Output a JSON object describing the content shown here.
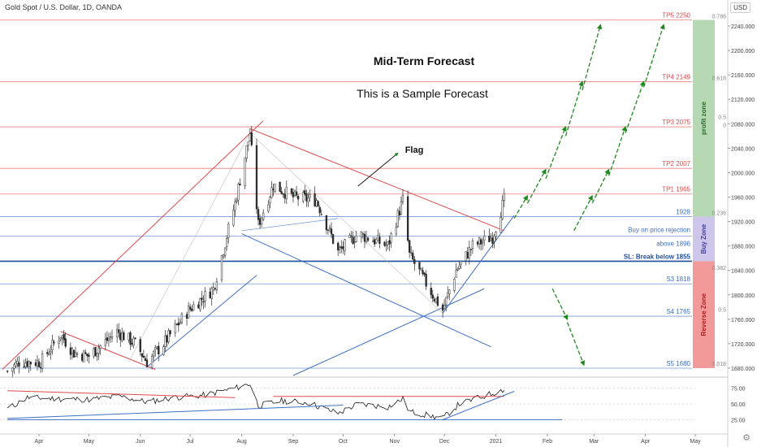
{
  "header": {
    "symbol_title": "Gold Spot / U.S. Dollar, 1D, OANDA",
    "currency": "USD"
  },
  "chart_data": {
    "type": "candlestick",
    "title": "Mid-Term Forecast",
    "subtitle": "This is a Sample Forecast",
    "y_axis": {
      "ylim": [
        1668,
        2256
      ],
      "ticks": [
        1680,
        1720,
        1760,
        1800,
        1840,
        1880,
        1920,
        1960,
        2000,
        2040,
        2080,
        2120,
        2160,
        2200,
        2240
      ],
      "tick_labels": [
        "1680.000",
        "1720.000",
        "1760.000",
        "1800.000",
        "1840.000",
        "1880.000",
        "1920.000",
        "1960.000",
        "2000.000",
        "2040.000",
        "2080.000",
        "2120.000",
        "2160.000",
        "2200.000",
        "2240.000"
      ]
    },
    "x_axis": {
      "ticks": [
        "2020-04-01",
        "2020-05-01",
        "2020-06-01",
        "2020-07-01",
        "2020-08-01",
        "2020-09-01",
        "2020-10-01",
        "2020-11-01",
        "2020-12-01",
        "2021-01-01",
        "2021-02-01",
        "2021-03-01",
        "2021-04-01",
        "2021-05-01"
      ],
      "tick_labels": [
        "Apr",
        "May",
        "Jun",
        "Jul",
        "Aug",
        "Sep",
        "Oct",
        "Nov",
        "Dec",
        "2021",
        "Feb",
        "Mar",
        "Apr",
        "May"
      ]
    },
    "price_path": [
      [
        "2020-03-13",
        1675
      ],
      [
        "2020-03-20",
        1690
      ],
      [
        "2020-04-02",
        1690
      ],
      [
        "2020-04-14",
        1735
      ],
      [
        "2020-04-22",
        1705
      ],
      [
        "2020-05-01",
        1700
      ],
      [
        "2020-05-18",
        1740
      ],
      [
        "2020-05-29",
        1720
      ],
      [
        "2020-06-05",
        1690
      ],
      [
        "2020-06-15",
        1720
      ],
      [
        "2020-06-30",
        1775
      ],
      [
        "2020-07-15",
        1810
      ],
      [
        "2020-07-28",
        1950
      ],
      [
        "2020-08-06",
        2065
      ],
      [
        "2020-08-11",
        1915
      ],
      [
        "2020-08-20",
        1980
      ],
      [
        "2020-09-01",
        1960
      ],
      [
        "2020-09-15",
        1955
      ],
      [
        "2020-09-28",
        1870
      ],
      [
        "2020-10-10",
        1900
      ],
      [
        "2020-10-28",
        1880
      ],
      [
        "2020-11-06",
        1955
      ],
      [
        "2020-11-10",
        1865
      ],
      [
        "2020-11-24",
        1800
      ],
      [
        "2020-11-30",
        1775
      ],
      [
        "2020-12-08",
        1840
      ],
      [
        "2020-12-18",
        1880
      ],
      [
        "2020-12-30",
        1895
      ],
      [
        "2021-01-06",
        1955
      ]
    ],
    "rsi": {
      "ticks": [
        25,
        50,
        75
      ],
      "tick_labels": [
        "25.00",
        "50.00",
        "75.00"
      ],
      "path": [
        [
          "2020-03-13",
          42
        ],
        [
          "2020-03-25",
          60
        ],
        [
          "2020-04-14",
          58
        ],
        [
          "2020-05-01",
          57
        ],
        [
          "2020-05-20",
          62
        ],
        [
          "2020-06-05",
          53
        ],
        [
          "2020-06-20",
          60
        ],
        [
          "2020-07-10",
          64
        ],
        [
          "2020-07-28",
          75
        ],
        [
          "2020-08-06",
          82
        ],
        [
          "2020-08-11",
          47
        ],
        [
          "2020-08-25",
          55
        ],
        [
          "2020-09-10",
          52
        ],
        [
          "2020-09-28",
          35
        ],
        [
          "2020-10-10",
          50
        ],
        [
          "2020-10-28",
          45
        ],
        [
          "2020-11-06",
          58
        ],
        [
          "2020-11-10",
          38
        ],
        [
          "2020-11-24",
          30
        ],
        [
          "2020-11-30",
          27
        ],
        [
          "2020-12-10",
          50
        ],
        [
          "2020-12-22",
          60
        ],
        [
          "2021-01-06",
          73
        ]
      ]
    },
    "levels": [
      {
        "label": "TP5 2250",
        "value": 2250,
        "color": "#e04a4a"
      },
      {
        "label": "TP4 2149",
        "value": 2149,
        "color": "#e04a4a"
      },
      {
        "label": "TP3 2075",
        "value": 2075,
        "color": "#e04a4a"
      },
      {
        "label": "TP2 2007",
        "value": 2007,
        "color": "#e04a4a"
      },
      {
        "label": "TP1 1965",
        "value": 1965,
        "color": "#e04a4a"
      },
      {
        "label": "1928",
        "value": 1928,
        "color": "#3f6fc4"
      },
      {
        "label": "Buy on price rejection",
        "label2": "above 1896",
        "value": 1896,
        "color": "#3f6fc4"
      },
      {
        "label": "SL: Break below 1855",
        "value": 1855,
        "color": "#1f4e9c"
      },
      {
        "label": "S3 1818",
        "value": 1818,
        "color": "#3f6fc4"
      },
      {
        "label": "S4 1765",
        "value": 1765,
        "color": "#3f6fc4"
      },
      {
        "label": "S5 1680",
        "value": 1680,
        "color": "#3f6fc4"
      }
    ],
    "fib_labels": [
      {
        "label": "0.786",
        "value": 2250
      },
      {
        "label": "0.618",
        "value": 2149
      },
      {
        "label": "0.5",
        "value": 2085
      },
      {
        "label": "0",
        "value": 2072
      },
      {
        "label": "0.236",
        "value": 1928
      },
      {
        "label": "0.382",
        "value": 1838
      },
      {
        "label": "0.5",
        "value": 1770
      },
      {
        "label": "0.618",
        "value": 1681
      }
    ],
    "zones": [
      {
        "label": "profit zone",
        "from": 1928,
        "to": 2250,
        "color": "#b6d9b3",
        "text_color": "#2e6b2e"
      },
      {
        "label": "Buy Zone",
        "from": 1855,
        "to": 1928,
        "color": "#cdc5ea",
        "text_color": "#3f3f9c"
      },
      {
        "label": "Reverse Zone",
        "from": 1680,
        "to": 1855,
        "color": "#f29a9a",
        "text_color": "#b02020"
      }
    ],
    "annotations": [
      {
        "text": "Flag"
      }
    ],
    "colors": {
      "up": "#2a2a2a",
      "down": "#2a2a2a",
      "red_line": "#e04a4a",
      "blue_line": "#3f6fc4",
      "forecast_arrow": "#1e8a1e",
      "rsi_line": "#1a1a1a"
    }
  }
}
